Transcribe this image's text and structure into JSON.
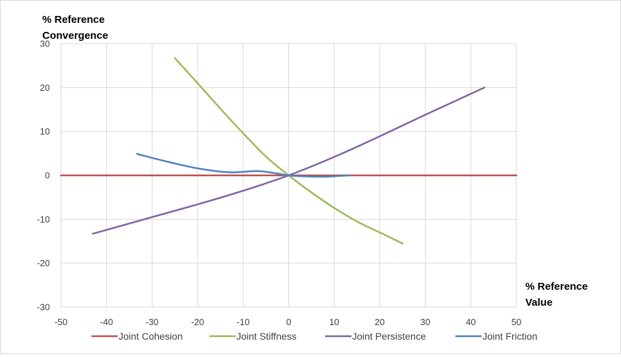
{
  "chart_data": {
    "type": "line",
    "ylabel": [
      "% Reference",
      "Convergence"
    ],
    "xlabel": [
      "% Reference",
      "Value"
    ],
    "xlim": [
      -50,
      50
    ],
    "ylim": [
      -30,
      30
    ],
    "x_ticks": [
      -50,
      -40,
      -30,
      -20,
      -10,
      0,
      10,
      20,
      30,
      40,
      50
    ],
    "y_ticks": [
      30,
      20,
      10,
      0,
      -10,
      -20,
      -30
    ],
    "grid": "vertical and horizontal major gridlines",
    "legend_position": "bottom",
    "series": [
      {
        "name": "Joint Cohesion",
        "color": "#c0504d",
        "points": [
          [
            -50,
            0
          ],
          [
            50,
            0
          ]
        ]
      },
      {
        "name": "Joint Stiffness",
        "color": "#9bbb59",
        "points": [
          [
            -25,
            26.7
          ],
          [
            -20,
            21
          ],
          [
            -15,
            15.2
          ],
          [
            -10,
            9.6
          ],
          [
            -5,
            4.3
          ],
          [
            0,
            0
          ],
          [
            5,
            -3.9
          ],
          [
            10,
            -7.4
          ],
          [
            15,
            -10.5
          ],
          [
            20,
            -13
          ],
          [
            25,
            -15.5
          ]
        ]
      },
      {
        "name": "Joint Persistence",
        "color": "#8064a2",
        "points": [
          [
            -43,
            -13.3
          ],
          [
            -30,
            -9.5
          ],
          [
            -20,
            -6.6
          ],
          [
            -10,
            -3.5
          ],
          [
            0,
            0
          ],
          [
            10,
            4.2
          ],
          [
            20,
            8.9
          ],
          [
            30,
            13.8
          ],
          [
            43,
            20
          ]
        ]
      },
      {
        "name": "Joint Friction",
        "color": "#4f81bd",
        "points": [
          [
            -33.3,
            4.9
          ],
          [
            -27,
            3.2
          ],
          [
            -20,
            1.6
          ],
          [
            -13,
            0.7
          ],
          [
            -7,
            1.0
          ],
          [
            -3,
            0.5
          ],
          [
            0,
            0
          ],
          [
            3,
            -0.2
          ],
          [
            7,
            -0.3
          ],
          [
            10,
            -0.2
          ],
          [
            13.3,
            0
          ]
        ]
      }
    ]
  }
}
